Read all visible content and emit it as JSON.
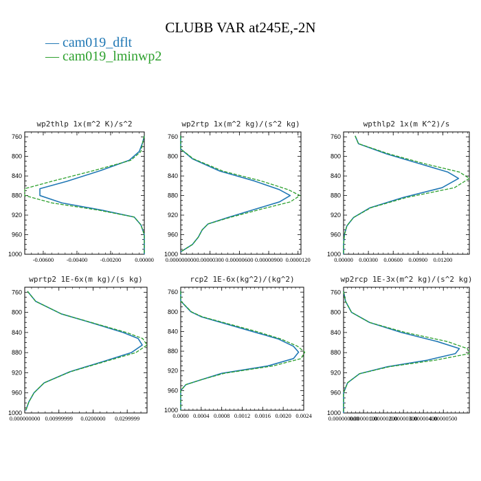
{
  "title": "CLUBB VAR at245E,-2N",
  "legend": [
    {
      "label": "cam019_dflt",
      "color": "#1f77b4"
    },
    {
      "label": "cam019_lminwp2",
      "color": "#2ca02c"
    }
  ],
  "chart_data": [
    {
      "type": "line",
      "title": "wp2thlp   1x(m^2 K)/s^2",
      "ylim": [
        1000,
        750
      ],
      "y_ticks": [
        "760",
        "800",
        "840",
        "880",
        "920",
        "960",
        "1000"
      ],
      "x_ticks": [
        "-0.00600",
        "-0.00400",
        "-0.00200",
        "0.00000"
      ],
      "x_tick_values": [
        -0.006,
        -0.004,
        -0.002,
        0.0
      ],
      "xlim": [
        -0.0071,
        0.0
      ],
      "series": [
        {
          "name": "cam019_dflt",
          "points": [
            [
              0,
              758
            ],
            [
              -0.0001,
              772
            ],
            [
              -0.0003,
              790
            ],
            [
              -0.0009,
              808
            ],
            [
              -0.0026,
              829
            ],
            [
              -0.0046,
              851
            ],
            [
              -0.0062,
              866
            ],
            [
              -0.0062,
              880
            ],
            [
              -0.0049,
              895
            ],
            [
              -0.0025,
              910
            ],
            [
              -0.0006,
              924
            ],
            [
              -0.0002,
              940
            ],
            [
              0,
              960
            ],
            [
              0,
              980
            ],
            [
              0,
              1000
            ]
          ]
        },
        {
          "name": "cam019_lminwp2",
          "points": [
            [
              0,
              758
            ],
            [
              -0.0001,
              772
            ],
            [
              -0.0002,
              790
            ],
            [
              -0.0008,
              808
            ],
            [
              -0.003,
              829
            ],
            [
              -0.0055,
              851
            ],
            [
              -0.0071,
              866
            ],
            [
              -0.0071,
              880
            ],
            [
              -0.0055,
              895
            ],
            [
              -0.0027,
              910
            ],
            [
              -0.0006,
              924
            ],
            [
              -0.0002,
              940
            ],
            [
              0,
              960
            ],
            [
              0,
              980
            ],
            [
              0,
              1000
            ]
          ]
        }
      ]
    },
    {
      "type": "line",
      "title": "wp2rtp   1x(m^2 kg)/(s^2 kg)",
      "ylim": [
        1000,
        750
      ],
      "y_ticks": [
        "760",
        "800",
        "840",
        "880",
        "920",
        "960",
        "1000"
      ],
      "x_ticks": [
        "0.000000000",
        "0.00000300",
        "0.00000600",
        "0.00000900",
        "0.0000120"
      ],
      "x_tick_values": [
        0.0,
        3e-06,
        6e-06,
        9e-06,
        1.2e-05
      ],
      "xlim": [
        0.0,
        1.23e-05
      ],
      "series": [
        {
          "name": "cam019_dflt",
          "points": [
            [
              0,
              758
            ],
            [
              0,
              785
            ],
            [
              1.2e-06,
              805
            ],
            [
              4e-06,
              830
            ],
            [
              7.5e-06,
              850
            ],
            [
              1.01e-05,
              868
            ],
            [
              1.12e-05,
              880
            ],
            [
              1.01e-05,
              893
            ],
            [
              7.6e-06,
              908
            ],
            [
              4.8e-06,
              925
            ],
            [
              2.8e-06,
              938
            ],
            [
              2.2e-06,
              950
            ],
            [
              1.8e-06,
              965
            ],
            [
              1.2e-06,
              980
            ],
            [
              0,
              995
            ]
          ]
        },
        {
          "name": "cam019_lminwp2",
          "points": [
            [
              0,
              758
            ],
            [
              0,
              785
            ],
            [
              1.3e-06,
              805
            ],
            [
              4.3e-06,
              830
            ],
            [
              8.2e-06,
              850
            ],
            [
              1.1e-05,
              868
            ],
            [
              1.22e-05,
              880
            ],
            [
              1.12e-05,
              893
            ],
            [
              8.2e-06,
              908
            ],
            [
              5e-06,
              925
            ],
            [
              2.8e-06,
              938
            ],
            [
              2.2e-06,
              950
            ],
            [
              1.8e-06,
              965
            ],
            [
              1.2e-06,
              980
            ],
            [
              0,
              995
            ]
          ]
        }
      ]
    },
    {
      "type": "line",
      "title": "wpthlp2   1x(m K^2)/s",
      "ylim": [
        1000,
        750
      ],
      "y_ticks": [
        "760",
        "800",
        "840",
        "880",
        "920",
        "960",
        "1000"
      ],
      "x_ticks": [
        "0.00000",
        "0.00300",
        "0.00600",
        "0.00900",
        "0.01200"
      ],
      "x_tick_values": [
        0.0,
        0.003,
        0.006,
        0.009,
        0.012
      ],
      "xlim": [
        0.0,
        0.0152
      ],
      "series": [
        {
          "name": "cam019_dflt",
          "points": [
            [
              0.0014,
              758
            ],
            [
              0.0018,
              774
            ],
            [
              0.0052,
              795
            ],
            [
              0.0092,
              815
            ],
            [
              0.0126,
              832
            ],
            [
              0.0139,
              845
            ],
            [
              0.0119,
              864
            ],
            [
              0.0072,
              884
            ],
            [
              0.0032,
              905
            ],
            [
              0.0012,
              925
            ],
            [
              0.0004,
              942
            ],
            [
              0.0001,
              960
            ],
            [
              0,
              980
            ],
            [
              0,
              1000
            ]
          ]
        },
        {
          "name": "cam019_lminwp2",
          "points": [
            [
              0.0014,
              758
            ],
            [
              0.0018,
              774
            ],
            [
              0.0055,
              795
            ],
            [
              0.0098,
              815
            ],
            [
              0.014,
              832
            ],
            [
              0.0152,
              845
            ],
            [
              0.0134,
              864
            ],
            [
              0.0076,
              884
            ],
            [
              0.0033,
              905
            ],
            [
              0.0012,
              925
            ],
            [
              0.0004,
              942
            ],
            [
              0.0001,
              960
            ],
            [
              0,
              980
            ],
            [
              0,
              1000
            ]
          ]
        }
      ]
    },
    {
      "type": "line",
      "title": "wprtp2   1E-6x(m kg)/(s kg)",
      "ylim": [
        1000,
        750
      ],
      "y_ticks": [
        "760",
        "800",
        "840",
        "880",
        "920",
        "960",
        "1000"
      ],
      "x_ticks": [
        "0.000000000",
        "0.00999999",
        "0.0200000",
        "0.0299999"
      ],
      "x_tick_values": [
        0.0,
        0.01,
        0.02,
        0.03
      ],
      "xlim": [
        0.0,
        0.0358
      ],
      "series": [
        {
          "name": "cam019_dflt",
          "points": [
            [
              0.0008,
              758
            ],
            [
              0.0032,
              778
            ],
            [
              0.0107,
              803
            ],
            [
              0.0202,
              822
            ],
            [
              0.0288,
              840
            ],
            [
              0.0332,
              852
            ],
            [
              0.0344,
              865
            ],
            [
              0.0312,
              880
            ],
            [
              0.0228,
              898
            ],
            [
              0.0132,
              918
            ],
            [
              0.0057,
              940
            ],
            [
              0.0027,
              960
            ],
            [
              0.0012,
              978
            ],
            [
              0.0003,
              995
            ]
          ]
        },
        {
          "name": "cam019_lminwp2",
          "points": [
            [
              0.0008,
              758
            ],
            [
              0.0032,
              778
            ],
            [
              0.0107,
              803
            ],
            [
              0.0205,
              822
            ],
            [
              0.0298,
              840
            ],
            [
              0.0345,
              852
            ],
            [
              0.0358,
              865
            ],
            [
              0.0325,
              880
            ],
            [
              0.0234,
              898
            ],
            [
              0.0134,
              918
            ],
            [
              0.0057,
              940
            ],
            [
              0.0027,
              960
            ],
            [
              0.0012,
              978
            ],
            [
              0.0003,
              995
            ]
          ]
        }
      ]
    },
    {
      "type": "line",
      "title": "rcp2   1E-6x(kg^2)/(kg^2)",
      "ylim": [
        1000,
        750
      ],
      "y_ticks": [
        "760",
        "800",
        "840",
        "880",
        "920",
        "960",
        "1000"
      ],
      "x_ticks": [
        "0.0000",
        "0.0004",
        "0.0008",
        "0.0012",
        "0.0016",
        "0.0020",
        "0.0024"
      ],
      "x_tick_values": [
        0.0,
        0.0004,
        0.0008,
        0.0012,
        0.0016,
        0.002,
        0.0024
      ],
      "xlim": [
        0.0,
        0.0024
      ],
      "series": [
        {
          "name": "cam019_dflt",
          "points": [
            [
              0,
              758
            ],
            [
              0,
              778
            ],
            [
              0.0002,
              800
            ],
            [
              0.0004,
              810
            ],
            [
              0.0009,
              825
            ],
            [
              0.0014,
              840
            ],
            [
              0.0019,
              855
            ],
            [
              0.0022,
              870
            ],
            [
              0.0023,
              882
            ],
            [
              0.0022,
              895
            ],
            [
              0.0017,
              910
            ],
            [
              0.0008,
              925
            ],
            [
              0.0004,
              938
            ],
            [
              0.0001,
              948
            ],
            [
              0,
              960
            ],
            [
              0,
              1000
            ]
          ]
        },
        {
          "name": "cam019_lminwp2",
          "points": [
            [
              0,
              758
            ],
            [
              0,
              778
            ],
            [
              0.00021,
              800
            ],
            [
              0.00042,
              810
            ],
            [
              0.00095,
              825
            ],
            [
              0.00148,
              840
            ],
            [
              0.00195,
              855
            ],
            [
              0.00228,
              870
            ],
            [
              0.00242,
              882
            ],
            [
              0.00235,
              895
            ],
            [
              0.0018,
              910
            ],
            [
              0.00085,
              925
            ],
            [
              0.0004,
              938
            ],
            [
              0.0001,
              948
            ],
            [
              0,
              960
            ],
            [
              0,
              1000
            ]
          ]
        }
      ]
    },
    {
      "type": "line",
      "title": "wp2rcp   1E-3x(m^2 kg)/(s^2 kg)",
      "ylim": [
        1000,
        750
      ],
      "y_ticks": [
        "760",
        "800",
        "840",
        "880",
        "920",
        "960",
        "1000"
      ],
      "x_ticks": [
        "0.000000000",
        "0.00000100",
        "0.00000200",
        "0.00000300",
        "0.00000400",
        "0.00000500"
      ],
      "x_tick_values": [
        0.0,
        1e-06,
        2e-06,
        3e-06,
        4e-06,
        5e-06
      ],
      "xlim": [
        0.0,
        6.3e-06
      ],
      "series": [
        {
          "name": "cam019_dflt",
          "points": [
            [
              0,
              758
            ],
            [
              1e-07,
              778
            ],
            [
              4e-07,
              800
            ],
            [
              1.3e-06,
              820
            ],
            [
              2.9e-06,
              840
            ],
            [
              4.7e-06,
              858
            ],
            [
              5.8e-06,
              872
            ],
            [
              5.6e-06,
              882
            ],
            [
              4.2e-06,
              895
            ],
            [
              2.2e-06,
              908
            ],
            [
              8e-07,
              922
            ],
            [
              2e-07,
              940
            ],
            [
              0,
              960
            ],
            [
              0,
              1000
            ]
          ]
        },
        {
          "name": "cam019_lminwp2",
          "points": [
            [
              0,
              758
            ],
            [
              1e-07,
              778
            ],
            [
              4e-07,
              800
            ],
            [
              1.3e-06,
              820
            ],
            [
              3.1e-06,
              840
            ],
            [
              5.2e-06,
              858
            ],
            [
              6.2e-06,
              872
            ],
            [
              6.3e-06,
              882
            ],
            [
              4.6e-06,
              895
            ],
            [
              2.3e-06,
              908
            ],
            [
              8e-07,
              922
            ],
            [
              2e-07,
              940
            ],
            [
              0,
              960
            ],
            [
              0,
              1000
            ]
          ]
        }
      ]
    }
  ]
}
